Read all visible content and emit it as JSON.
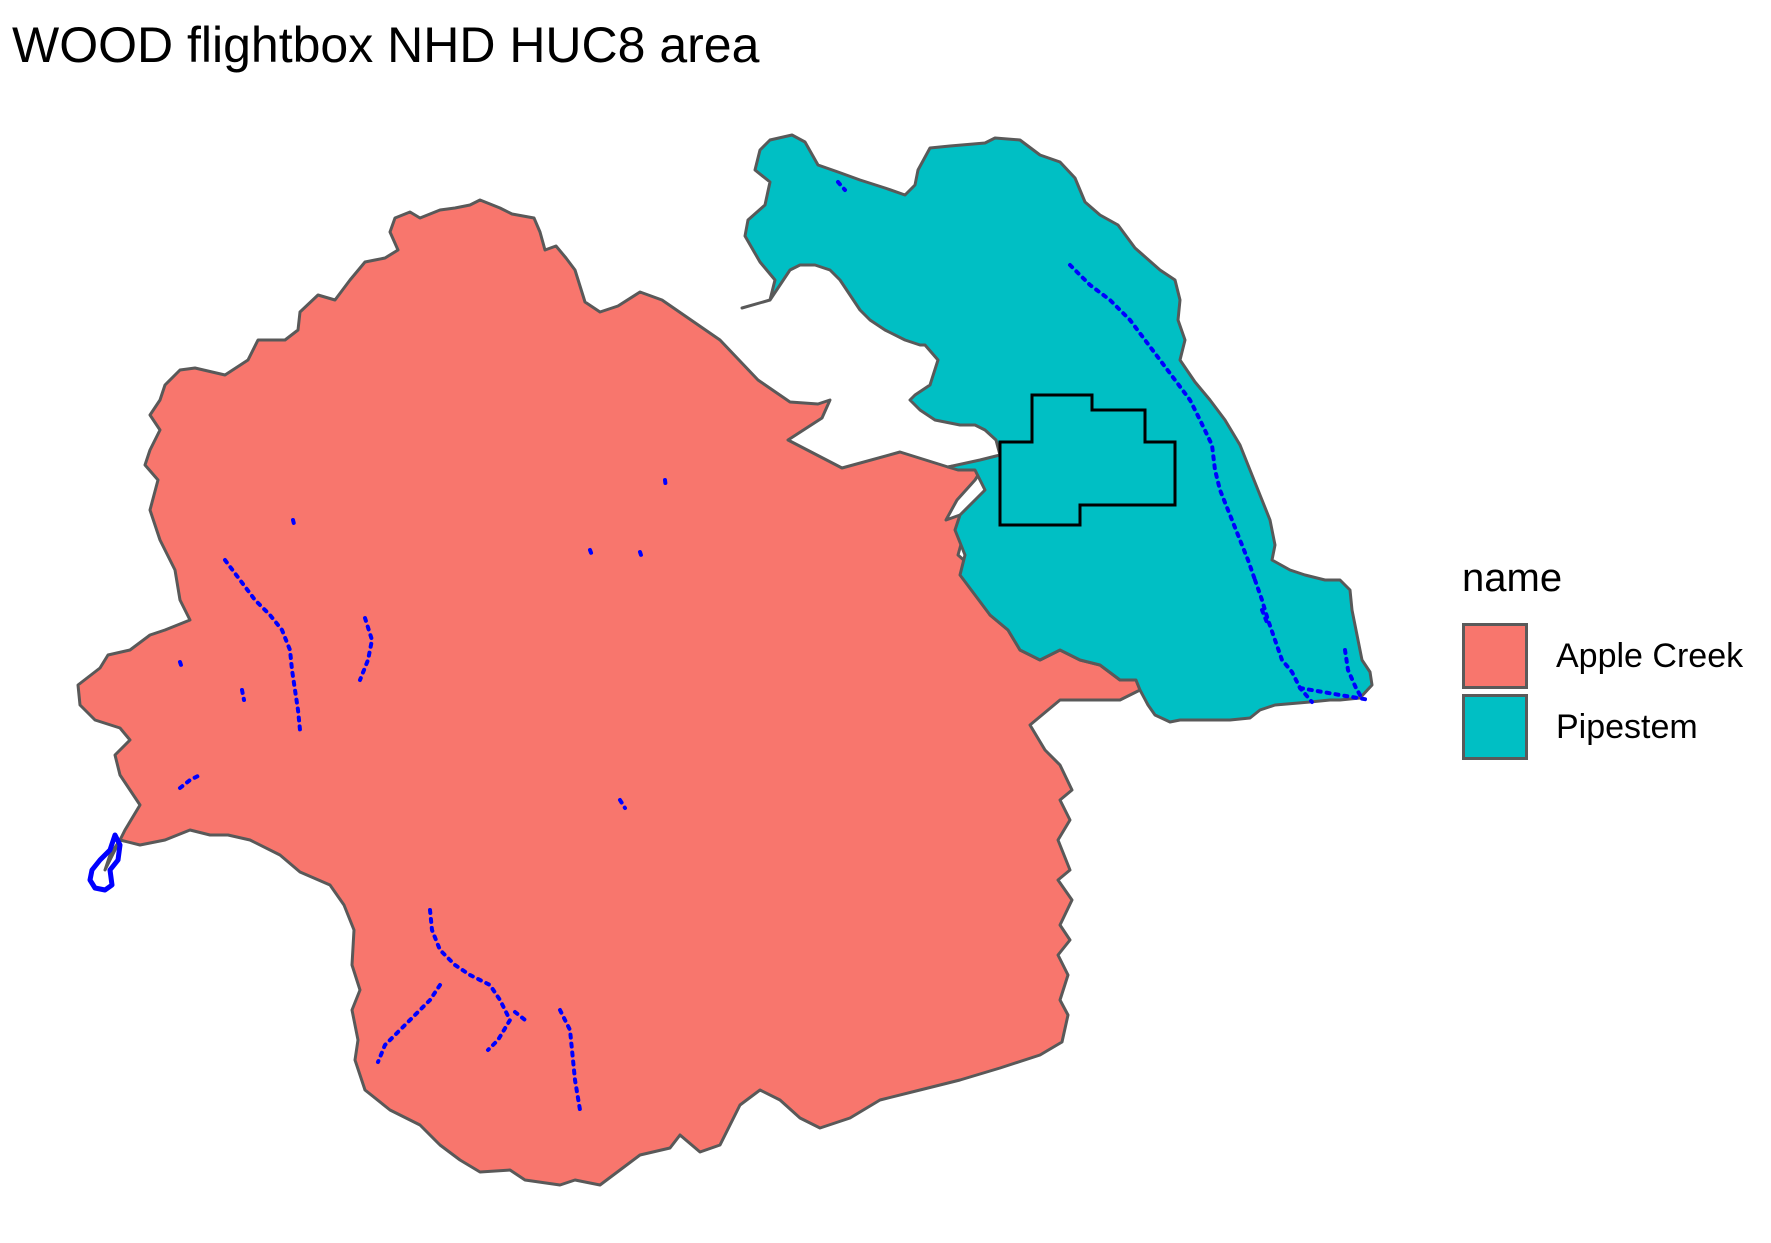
{
  "title": "WOOD flightbox NHD HUC8 area",
  "legend": {
    "title": "name",
    "items": [
      {
        "label": "Apple Creek",
        "color": "#F8766D"
      },
      {
        "label": "Pipestem",
        "color": "#00BFC4"
      }
    ]
  },
  "regions": [
    {
      "name": "Apple Creek",
      "color": "#F8766D"
    },
    {
      "name": "Pipestem",
      "color": "#00BFC4"
    }
  ],
  "styles": {
    "boundary_color": "#595959",
    "stream_color": "#0000FF",
    "flightbox_color": "#000000"
  }
}
